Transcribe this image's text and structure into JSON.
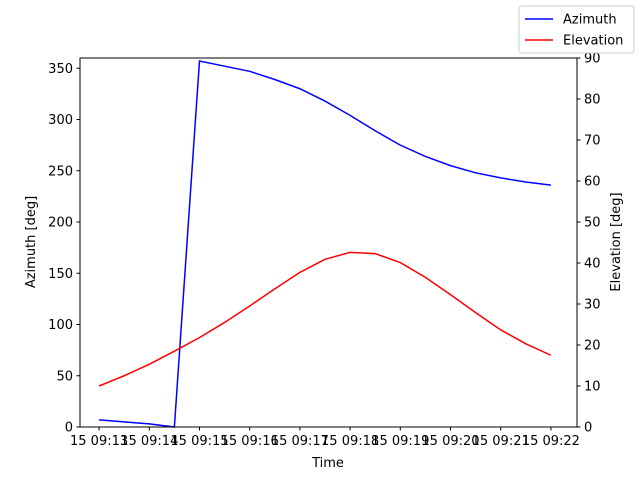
{
  "chart_data": {
    "type": "line",
    "xlabel": "Time",
    "ylabel_left": "Azimuth [deg]",
    "ylabel_right": "Elevation [deg]",
    "x_ticks": [
      "15 09:13",
      "15 09:14",
      "15 09:15",
      "15 09:16",
      "15 09:17",
      "15 09:18",
      "15 09:19",
      "15 09:20",
      "15 09:21",
      "15 09:22"
    ],
    "xlim_minutes": [
      -0.38,
      9.52
    ],
    "ylim_left": [
      0,
      360
    ],
    "yticks_left": [
      0,
      50,
      100,
      150,
      200,
      250,
      300,
      350
    ],
    "ylim_right": [
      0,
      90
    ],
    "yticks_right": [
      0,
      10,
      20,
      30,
      40,
      50,
      60,
      70,
      80,
      90
    ],
    "legend_position": "top-right",
    "series": [
      {
        "name": "Azimuth",
        "axis": "left",
        "color": "#0000ff",
        "points": [
          [
            0,
            7
          ],
          [
            0.5,
            5
          ],
          [
            1,
            3
          ],
          [
            1.5,
            0
          ],
          [
            2,
            357
          ],
          [
            2.5,
            352
          ],
          [
            3,
            347
          ],
          [
            3.5,
            339
          ],
          [
            4,
            330
          ],
          [
            4.5,
            318
          ],
          [
            5,
            304
          ],
          [
            5.5,
            289
          ],
          [
            6,
            275
          ],
          [
            6.5,
            264
          ],
          [
            7,
            255
          ],
          [
            7.5,
            248
          ],
          [
            8,
            243
          ],
          [
            8.5,
            239
          ],
          [
            9,
            236
          ]
        ]
      },
      {
        "name": "Elevation",
        "axis": "right",
        "color": "#ff0000",
        "points": [
          [
            0,
            10
          ],
          [
            0.5,
            12.5
          ],
          [
            1,
            15.3
          ],
          [
            1.5,
            18.5
          ],
          [
            2,
            21.8
          ],
          [
            2.5,
            25.5
          ],
          [
            3,
            29.5
          ],
          [
            3.5,
            33.7
          ],
          [
            4,
            37.7
          ],
          [
            4.5,
            40.9
          ],
          [
            5,
            42.6
          ],
          [
            5.5,
            42.3
          ],
          [
            6,
            40.1
          ],
          [
            6.5,
            36.5
          ],
          [
            7,
            32.3
          ],
          [
            7.5,
            27.9
          ],
          [
            8,
            23.7
          ],
          [
            8.5,
            20.3
          ],
          [
            9,
            17.5
          ]
        ]
      }
    ]
  }
}
